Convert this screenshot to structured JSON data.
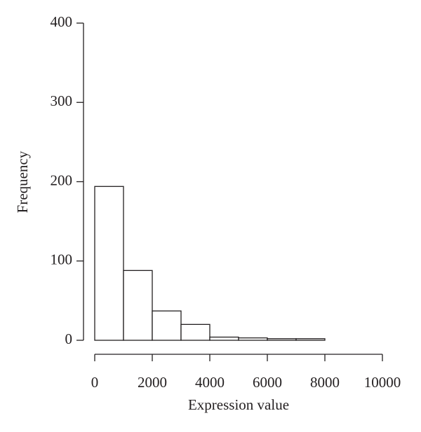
{
  "chart_data": {
    "type": "histogram",
    "xlabel": "Expression value",
    "ylabel": "Frequency",
    "bins": [
      0,
      1000,
      2000,
      3000,
      4000,
      5000,
      6000,
      7000,
      8000
    ],
    "values": [
      194,
      88,
      37,
      20,
      4,
      3,
      2,
      2
    ],
    "color": "#ffffff",
    "edgecolor": "#231f20",
    "xlim": [
      0,
      10000
    ],
    "xticks": [
      0,
      2000,
      4000,
      6000,
      8000,
      10000
    ],
    "ylim": [
      0,
      400
    ],
    "yticks": [
      0,
      100,
      200,
      300,
      400
    ]
  }
}
